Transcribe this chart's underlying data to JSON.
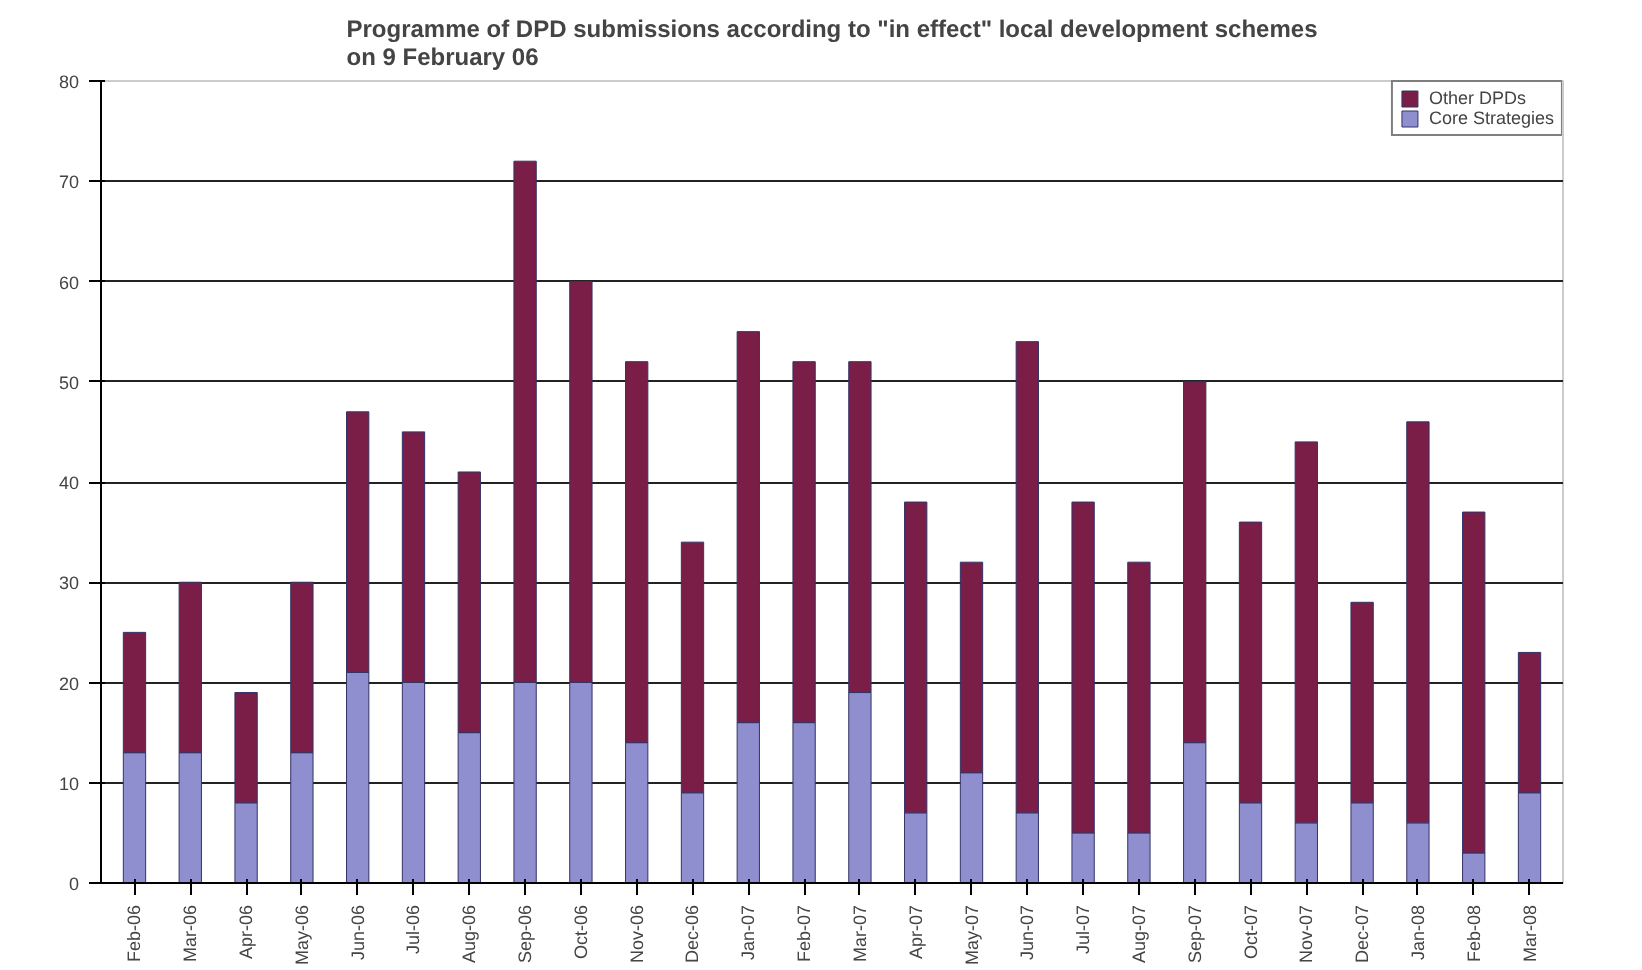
{
  "chart_data": {
    "type": "bar",
    "stacked": true,
    "title": "Programme of DPD submissions according to \"in effect\" local development schemes\non 9 February 06",
    "categories": [
      "Feb-06",
      "Mar-06",
      "Apr-06",
      "May-06",
      "Jun-06",
      "Jul-06",
      "Aug-06",
      "Sep-06",
      "Oct-06",
      "Nov-06",
      "Dec-06",
      "Jan-07",
      "Feb-07",
      "Mar-07",
      "Apr-07",
      "May-07",
      "Jun-07",
      "Jul-07",
      "Aug-07",
      "Sep-07",
      "Oct-07",
      "Nov-07",
      "Dec-07",
      "Jan-08",
      "Feb-08",
      "Mar-08"
    ],
    "series": [
      {
        "name": "Core Strategies",
        "color": "#8f8fd0",
        "values": [
          13,
          13,
          8,
          13,
          21,
          20,
          15,
          20,
          20,
          14,
          9,
          16,
          16,
          19,
          7,
          11,
          7,
          5,
          5,
          14,
          8,
          6,
          8,
          6,
          3,
          9
        ]
      },
      {
        "name": "Other DPDs",
        "color": "#7a1e48",
        "values": [
          12,
          17,
          11,
          17,
          26,
          25,
          26,
          52,
          40,
          38,
          25,
          39,
          36,
          33,
          31,
          21,
          47,
          33,
          27,
          36,
          28,
          38,
          20,
          40,
          34,
          14
        ]
      }
    ],
    "ylim": [
      0,
      80
    ],
    "yticks": [
      0,
      10,
      20,
      30,
      40,
      50,
      60,
      70,
      80
    ],
    "grid": "y",
    "legend": "top right"
  }
}
